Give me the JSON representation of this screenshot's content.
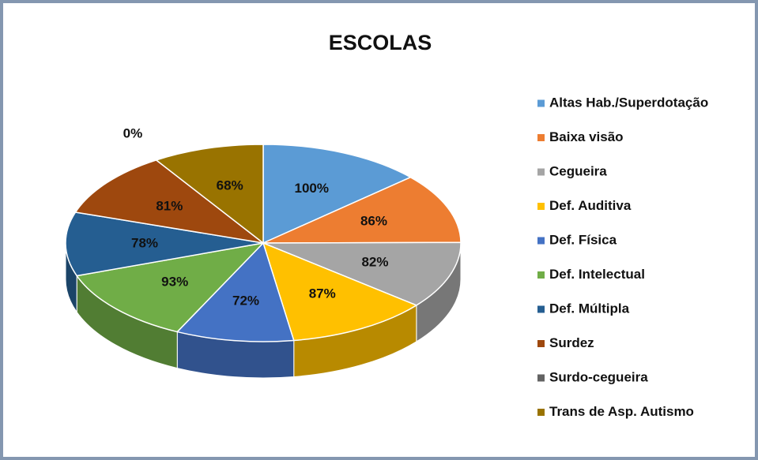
{
  "chart_data": {
    "type": "pie",
    "title": "ESCOLAS",
    "categories": [
      "Altas Hab./Superdotação",
      "Baixa visão",
      "Cegueira",
      "Def. Auditiva",
      "Def. Física",
      "Def. Intelectual",
      "Def. Múltipla",
      "Surdez",
      "Surdo-cegueira",
      "Trans de Asp. Autismo"
    ],
    "values": [
      100,
      86,
      82,
      87,
      72,
      93,
      78,
      81,
      0,
      68
    ],
    "value_labels": [
      "100%",
      "86%",
      "82%",
      "87%",
      "72%",
      "93%",
      "78%",
      "81%",
      "0%",
      "68%"
    ],
    "colors": [
      "#5b9bd5",
      "#ed7d31",
      "#a5a5a5",
      "#ffc000",
      "#4472c4",
      "#70ad47",
      "#255e91",
      "#9e480e",
      "#636363",
      "#997300"
    ],
    "legend": "right"
  }
}
